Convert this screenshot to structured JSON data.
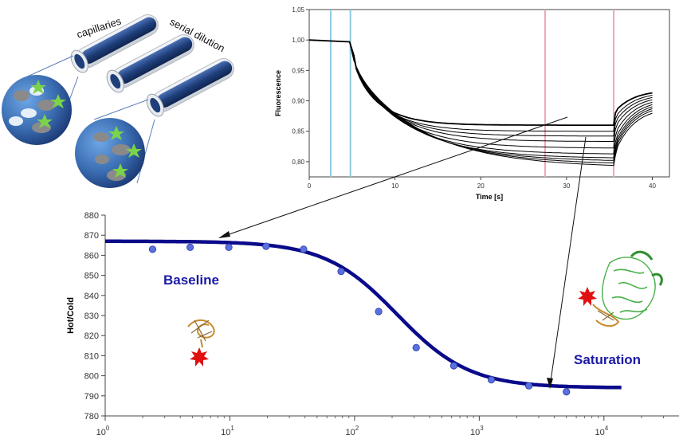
{
  "illustration": {
    "label_capillaries": "capillaries",
    "label_serial_dilution": "serial dilution"
  },
  "colors": {
    "capillary": "#1f3f7a",
    "curve": "#0a0a8a",
    "points": "#5a6fe0",
    "cursor_blue": "#8ec9e0",
    "cursor_red": "#f0a6b4",
    "annotation": "#1a1aa6",
    "star": "#7bd34a",
    "sphere": "#3a6db2"
  },
  "chart_data": [
    {
      "type": "line",
      "xlabel": "Time [s]",
      "ylabel": "Fluorescence",
      "xlim": [
        0,
        42
      ],
      "ylim": [
        0.775,
        1.05
      ],
      "x_ticks": [
        0,
        10,
        20,
        30,
        40
      ],
      "y_ticks": [
        "0,80",
        "0,85",
        "0,90",
        "0,95",
        "1,00",
        "1,05"
      ],
      "y_tick_values": [
        0.8,
        0.85,
        0.9,
        0.95,
        1.0,
        1.05
      ],
      "cursors_blue": [
        2.5,
        4.8
      ],
      "cursors_red": [
        27.5,
        35.5
      ],
      "series_plateau": [
        0.86,
        0.85,
        0.842,
        0.833,
        0.822,
        0.812,
        0.805,
        0.8,
        0.795,
        0.79
      ],
      "series_end": [
        0.918,
        0.915,
        0.912,
        0.909,
        0.906,
        0.903,
        0.9,
        0.897,
        0.894,
        0.89
      ],
      "start_value": 1.0,
      "drop_time": 5.0,
      "recover_time": 35.5
    },
    {
      "type": "scatter",
      "xlabel": "",
      "ylabel": "Hot/Cold",
      "x_scale": "log",
      "xlim": [
        1,
        40000
      ],
      "ylim": [
        780,
        880
      ],
      "x_ticks": [
        {
          "base": "10",
          "exp": "0"
        },
        {
          "base": "10",
          "exp": "1"
        },
        {
          "base": "10",
          "exp": "2"
        },
        {
          "base": "10",
          "exp": "3"
        },
        {
          "base": "10",
          "exp": "4"
        }
      ],
      "x_tick_values": [
        1,
        10,
        100,
        1000,
        10000
      ],
      "y_ticks": [
        "780",
        "790",
        "800",
        "810",
        "820",
        "830",
        "840",
        "850",
        "860",
        "870",
        "880"
      ],
      "y_tick_values": [
        780,
        790,
        800,
        810,
        820,
        830,
        840,
        850,
        860,
        870,
        880
      ],
      "points_x": [
        2.4,
        4.8,
        9.8,
        19.5,
        39,
        78,
        156,
        312,
        625,
        1250,
        2500,
        5000
      ],
      "points_y": [
        863,
        864,
        864,
        864.5,
        863,
        852,
        832,
        814,
        805,
        798,
        795,
        792
      ],
      "fit": {
        "top": 867,
        "bottom": 794,
        "ec50": 220,
        "hill": 1.5,
        "x_end": 14000
      },
      "annotations": {
        "baseline": "Baseline",
        "saturation": "Saturation"
      }
    }
  ]
}
